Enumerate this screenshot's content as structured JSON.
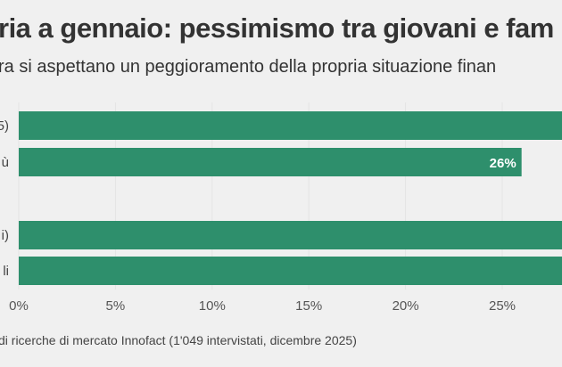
{
  "title": "ria a gennaio: pessimismo tra giovani e fam",
  "subtitle": "ra si aspettano un peggioramento della propria situazione finan",
  "source": "di ricerche di mercato Innofact (1'049 intervistati, dicembre 2025)",
  "colors": {
    "bar": "#2e8f6c",
    "background": "#f0f0f0",
    "label_text": "#ffffff"
  },
  "chart_data": {
    "type": "bar",
    "orientation": "horizontal",
    "categories": [
      "5)",
      "ù",
      "i)",
      "li"
    ],
    "values": [
      null,
      26,
      null,
      null
    ],
    "value_labels": [
      "",
      "26%",
      "",
      ""
    ],
    "note_values": "bars for categories 1, 3, 4 extend beyond the visible area (> ~28%)",
    "xlim": [
      0,
      28.6
    ],
    "xticks": [
      0,
      5,
      10,
      15,
      20,
      25
    ],
    "xtick_labels": [
      "0%",
      "5%",
      "10%",
      "15%",
      "20%",
      "25%"
    ],
    "grid": true
  }
}
